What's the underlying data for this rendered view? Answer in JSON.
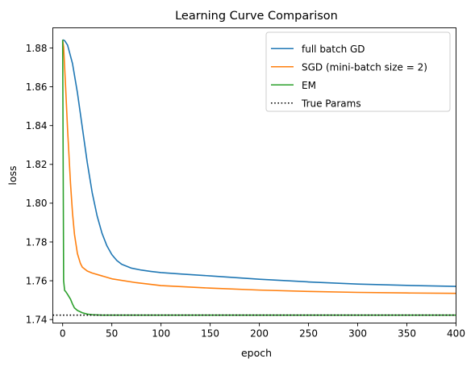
{
  "chart_data": {
    "type": "line",
    "title": "Learning Curve Comparison",
    "xlabel": "epoch",
    "ylabel": "loss",
    "xlim": [
      -10,
      400
    ],
    "ylim": [
      1.7382,
      1.8904
    ],
    "xticks": [
      0,
      50,
      100,
      150,
      200,
      250,
      300,
      350,
      400
    ],
    "yticks": [
      1.74,
      1.76,
      1.78,
      1.8,
      1.82,
      1.84,
      1.86,
      1.88
    ],
    "ytick_labels": [
      "1.74",
      "1.76",
      "1.78",
      "1.80",
      "1.82",
      "1.84",
      "1.86",
      "1.88"
    ],
    "grid": false,
    "legend_position": "upper-right",
    "series": [
      {
        "name": "full batch GD",
        "color": "#1f77b4",
        "style": "solid",
        "x": [
          0,
          2,
          5,
          10,
          15,
          20,
          25,
          30,
          35,
          40,
          45,
          50,
          55,
          60,
          70,
          80,
          90,
          100,
          120,
          150,
          200,
          250,
          300,
          350,
          400
        ],
        "y": [
          1.8842,
          1.8838,
          1.8815,
          1.872,
          1.857,
          1.839,
          1.821,
          1.8055,
          1.7935,
          1.7845,
          1.778,
          1.7735,
          1.7705,
          1.7685,
          1.7665,
          1.7655,
          1.7648,
          1.7642,
          1.7635,
          1.7625,
          1.7608,
          1.7594,
          1.7583,
          1.7576,
          1.7571
        ]
      },
      {
        "name": "SGD (mini-batch size = 2)",
        "color": "#ff7f0e",
        "style": "solid",
        "x": [
          0,
          1,
          3,
          5,
          8,
          10,
          12,
          15,
          18,
          20,
          25,
          30,
          40,
          50,
          75,
          100,
          150,
          200,
          250,
          300,
          350,
          400
        ],
        "y": [
          1.8842,
          1.8805,
          1.86,
          1.838,
          1.81,
          1.795,
          1.784,
          1.774,
          1.769,
          1.767,
          1.765,
          1.764,
          1.7625,
          1.761,
          1.759,
          1.7575,
          1.7562,
          1.7552,
          1.7545,
          1.754,
          1.7537,
          1.7535
        ]
      },
      {
        "name": "EM",
        "color": "#2ca02c",
        "style": "solid",
        "x": [
          0,
          1,
          2,
          3,
          5,
          8,
          10,
          12,
          15,
          20,
          25,
          30,
          40,
          50,
          100,
          200,
          300,
          400
        ],
        "y": [
          1.8842,
          1.76,
          1.755,
          1.7545,
          1.753,
          1.7505,
          1.748,
          1.746,
          1.7447,
          1.7435,
          1.7428,
          1.7425,
          1.7423,
          1.7423,
          1.7423,
          1.7423,
          1.7423,
          1.7423
        ]
      },
      {
        "name": "True Params",
        "color": "#000000",
        "style": "dotted",
        "y_const": 1.7423
      }
    ]
  }
}
